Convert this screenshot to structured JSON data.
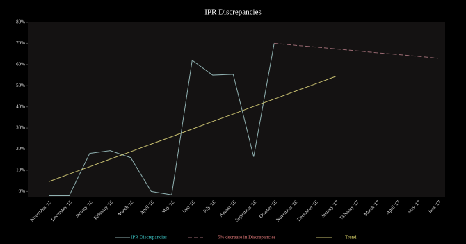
{
  "chart_data": {
    "type": "line",
    "title": "IPR Discrepancies",
    "categories": [
      "November '15",
      "December '15",
      "January '16",
      "February '16",
      "March '16",
      "April '16",
      "May '16",
      "June '16",
      "July '16",
      "August '16",
      "September '16",
      "October '16",
      "November '16",
      "December '16",
      "January '17",
      "February '17",
      "March '17",
      "April '17",
      "May '17",
      "June '17"
    ],
    "series": [
      {
        "name": "IPR Discrepancies",
        "color": "#8fb0b0",
        "legend_color": "#3fd0d0",
        "dashed": false,
        "values": [
          -2,
          -2,
          18,
          19.3,
          16,
          0,
          -1.6,
          62,
          55,
          55.4,
          16.4,
          70,
          null,
          null,
          null,
          null,
          null,
          null,
          null,
          null
        ]
      },
      {
        "name": "5% decrease in Discrepancies",
        "color": "#9a6a72",
        "legend_color": "#e07878",
        "dashed": true,
        "values": [
          null,
          null,
          null,
          null,
          null,
          null,
          null,
          null,
          null,
          null,
          null,
          70,
          69.1,
          68.3,
          67.4,
          66.5,
          65.6,
          64.8,
          63.9,
          63
        ]
      },
      {
        "name": "Trend",
        "color": "#c8c070",
        "legend_color": "#e8e070",
        "dashed": false,
        "values": [
          4.6,
          8.2,
          11.7,
          15.3,
          18.8,
          22.4,
          25.9,
          29.5,
          33.1,
          36.6,
          40.2,
          43.7,
          47.3,
          50.8,
          54.4,
          null,
          null,
          null,
          null,
          null
        ]
      }
    ],
    "ylim": [
      -2.5,
      80
    ],
    "yticks": [
      {
        "value": 0,
        "label": "0%"
      },
      {
        "value": 10,
        "label": "10%"
      },
      {
        "value": 20,
        "label": "20%"
      },
      {
        "value": 30,
        "label": "30%"
      },
      {
        "value": 40,
        "label": "40%"
      },
      {
        "value": 50,
        "label": "50%"
      },
      {
        "value": 60,
        "label": "60%"
      },
      {
        "value": 70,
        "label": "70%"
      },
      {
        "value": 80,
        "label": "80%"
      }
    ],
    "legend": "bottom",
    "grid": false
  }
}
